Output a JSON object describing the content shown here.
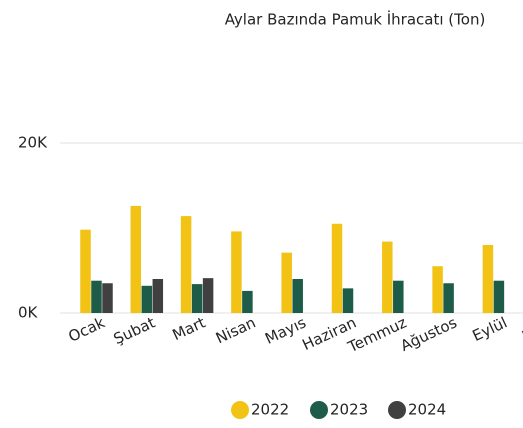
{
  "chart_data": {
    "type": "bar",
    "title": "Aylar Bazında Pamuk İhracatı (Ton)",
    "categories": [
      "Ocak",
      "Şubat",
      "Mart",
      "Nisan",
      "Mayıs",
      "Haziran",
      "Temmuz",
      "Ağustos",
      "Eylül",
      "Ekim"
    ],
    "series": [
      {
        "name": "2022",
        "color": "#f2c314",
        "values": [
          9800,
          12600,
          11400,
          9600,
          7100,
          10500,
          8400,
          5500,
          8000,
          null
        ]
      },
      {
        "name": "2023",
        "color": "#1e5c4a",
        "values": [
          3800,
          3200,
          3400,
          2600,
          4000,
          2900,
          3800,
          3500,
          3800,
          null
        ]
      },
      {
        "name": "2024",
        "color": "#404040",
        "values": [
          3500,
          4000,
          4100,
          null,
          null,
          null,
          null,
          null,
          null,
          null
        ]
      }
    ],
    "ylim": [
      0,
      20000
    ],
    "yticks": [
      {
        "value": 0,
        "label": "0K"
      },
      {
        "value": 20000,
        "label": "20K"
      }
    ],
    "grid": true,
    "legend": "bottom"
  }
}
